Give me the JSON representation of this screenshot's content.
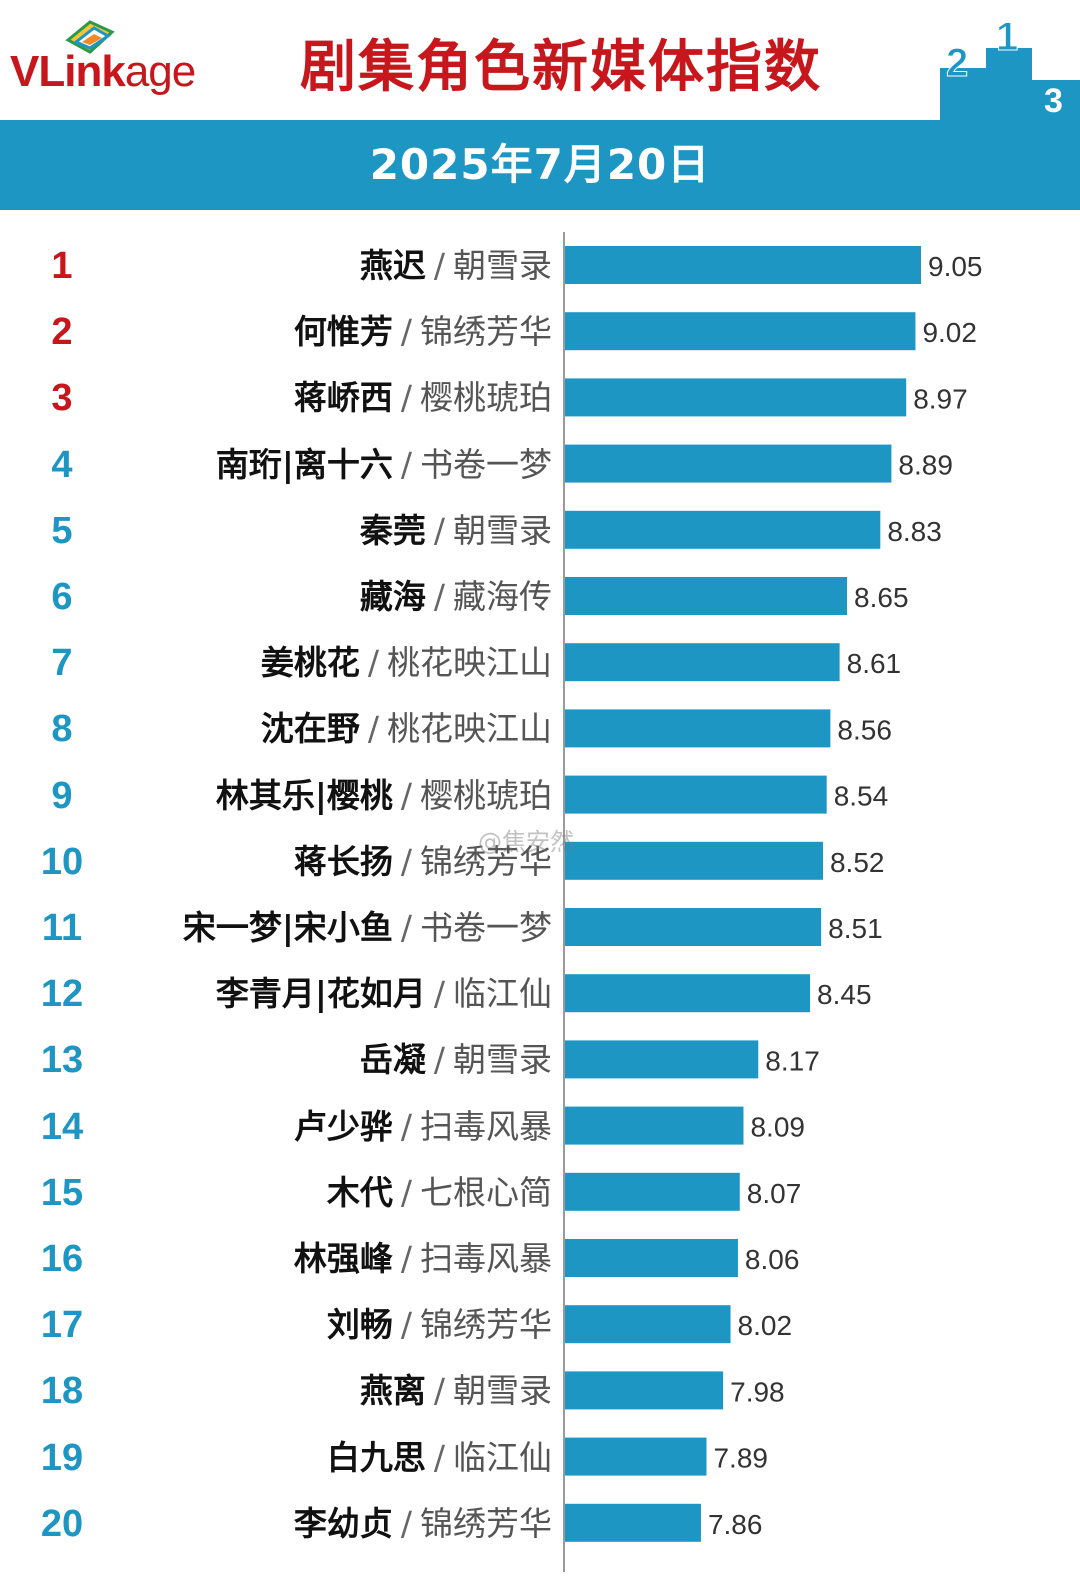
{
  "header": {
    "logo": {
      "part1": "VL",
      "part2": "ink",
      "part3": "age"
    },
    "title": "剧集角色新媒体指数",
    "date": "2025年7月20日",
    "podium_digits": [
      "2",
      "1",
      "3"
    ]
  },
  "colors": {
    "bar": "#1e96c4",
    "rank_top3": "#c8161d",
    "rank_other": "#1e96c4",
    "title": "#c8161d",
    "date_band": "#1e96c4"
  },
  "watermark": "@焦安然",
  "chart_data": {
    "type": "bar",
    "orientation": "horizontal",
    "title": "剧集角色新媒体指数",
    "subtitle": "2025年7月20日",
    "xlim": [
      0,
      9.3
    ],
    "grid": false,
    "value_labels": true,
    "categories": [
      {
        "rank": "1",
        "character": "燕迟",
        "show": "朝雪录"
      },
      {
        "rank": "2",
        "character": "何惟芳",
        "show": "锦绣芳华"
      },
      {
        "rank": "3",
        "character": "蒋峤西",
        "show": "樱桃琥珀"
      },
      {
        "rank": "4",
        "character": "南珩|离十六",
        "show": "书卷一梦"
      },
      {
        "rank": "5",
        "character": "秦莞",
        "show": "朝雪录"
      },
      {
        "rank": "6",
        "character": "藏海",
        "show": "藏海传"
      },
      {
        "rank": "7",
        "character": "姜桃花",
        "show": "桃花映江山"
      },
      {
        "rank": "8",
        "character": "沈在野",
        "show": "桃花映江山"
      },
      {
        "rank": "9",
        "character": "林其乐|樱桃",
        "show": "樱桃琥珀"
      },
      {
        "rank": "10",
        "character": "蒋长扬",
        "show": "锦绣芳华"
      },
      {
        "rank": "11",
        "character": "宋一梦|宋小鱼",
        "show": "书卷一梦"
      },
      {
        "rank": "12",
        "character": "李青月|花如月",
        "show": "临江仙"
      },
      {
        "rank": "13",
        "character": "岳凝",
        "show": "朝雪录"
      },
      {
        "rank": "14",
        "character": "卢少骅",
        "show": "扫毒风暴"
      },
      {
        "rank": "15",
        "character": "木代",
        "show": "七根心简"
      },
      {
        "rank": "16",
        "character": "林强峰",
        "show": "扫毒风暴"
      },
      {
        "rank": "17",
        "character": "刘畅",
        "show": "锦绣芳华"
      },
      {
        "rank": "18",
        "character": "燕离",
        "show": "朝雪录"
      },
      {
        "rank": "19",
        "character": "白九思",
        "show": "临江仙"
      },
      {
        "rank": "20",
        "character": "李幼贞",
        "show": "锦绣芳华"
      }
    ],
    "values": [
      9.05,
      9.02,
      8.97,
      8.89,
      8.83,
      8.65,
      8.61,
      8.56,
      8.54,
      8.52,
      8.51,
      8.45,
      8.17,
      8.09,
      8.07,
      8.06,
      8.02,
      7.98,
      7.89,
      7.86
    ],
    "value_labels_text": [
      "9.05",
      "9.02",
      "8.97",
      "8.89",
      "8.83",
      "8.65",
      "8.61",
      "8.56",
      "8.54",
      "8.52",
      "8.51",
      "8.45",
      "8.17",
      "8.09",
      "8.07",
      "8.06",
      "8.02",
      "7.98",
      "7.89",
      "7.86"
    ]
  }
}
